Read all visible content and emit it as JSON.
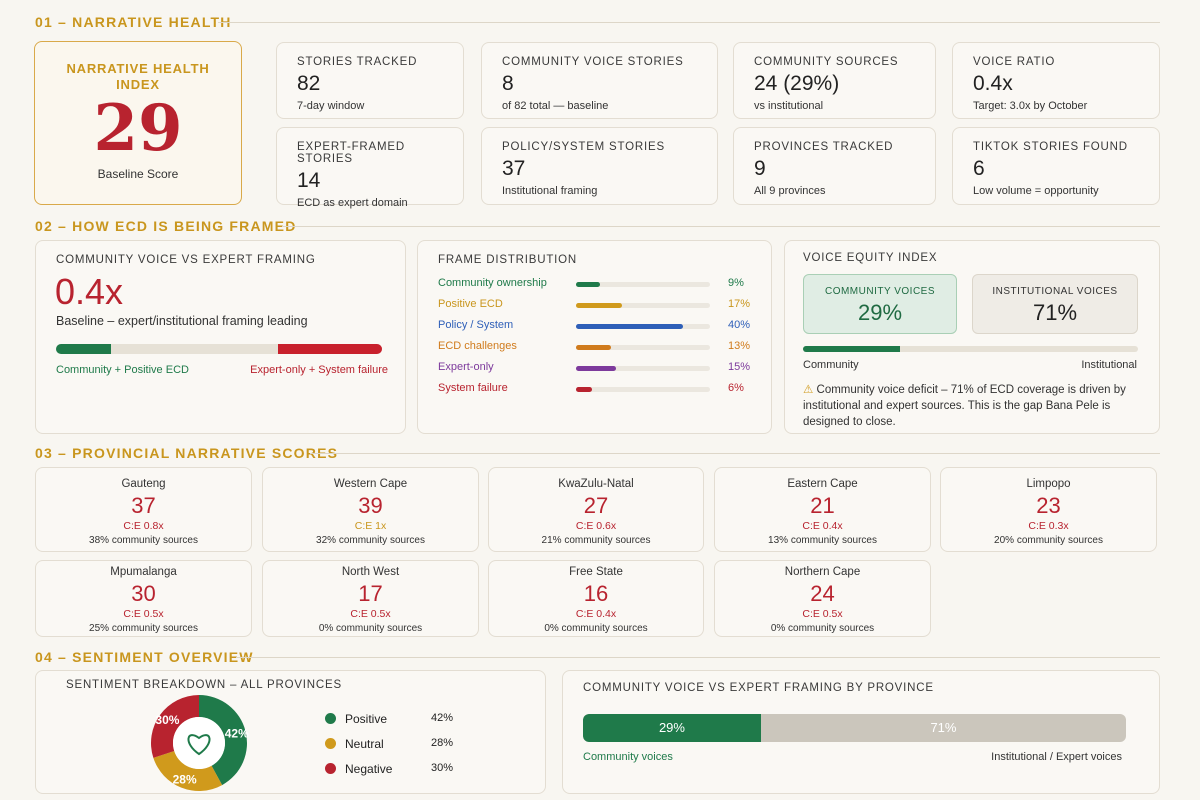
{
  "sections": {
    "s1": "01 – NARRATIVE HEALTH",
    "s2": "02 – HOW ECD IS BEING FRAMED",
    "s3": "03 – PROVINCIAL NARRATIVE SCORES",
    "s4": "04 – SENTIMENT OVERVIEW"
  },
  "health_index": {
    "title": "NARRATIVE HEALTH INDEX",
    "score": "29",
    "sub": "Baseline Score"
  },
  "stats": [
    {
      "label": "STORIES TRACKED",
      "value": "82",
      "sub": "7-day window"
    },
    {
      "label": "COMMUNITY VOICE STORIES",
      "value": "8",
      "sub": "of 82 total — baseline"
    },
    {
      "label": "COMMUNITY SOURCES",
      "value": "24 (29%)",
      "sub": "vs institutional"
    },
    {
      "label": "VOICE RATIO",
      "value": "0.4x",
      "sub": "Target: 3.0x by October"
    },
    {
      "label": "EXPERT-FRAMED STORIES",
      "value": "14",
      "sub": "ECD as expert domain"
    },
    {
      "label": "POLICY/SYSTEM STORIES",
      "value": "37",
      "sub": "Institutional framing"
    },
    {
      "label": "PROVINCES TRACKED",
      "value": "9",
      "sub": "All 9 provinces"
    },
    {
      "label": "TIKTOK STORIES FOUND",
      "value": "6",
      "sub": "Low volume = opportunity"
    }
  ],
  "framing": {
    "title": "COMMUNITY VOICE VS EXPERT FRAMING",
    "value": "0.4x",
    "sub": "Baseline – expert/institutional framing leading",
    "left_label": "Community + Positive ECD",
    "right_label": "Expert-only + System failure",
    "green_share": 0.17,
    "red_share": 0.32
  },
  "frame_distribution": {
    "title": "FRAME DISTRIBUTION",
    "items": [
      {
        "name": "Community ownership",
        "pct": "9%",
        "value": 9,
        "color": "#1f7a4a"
      },
      {
        "name": "Positive ECD",
        "pct": "17%",
        "value": 17,
        "color": "#d09a1c"
      },
      {
        "name": "Policy / System",
        "pct": "40%",
        "value": 40,
        "color": "#2e5fb8"
      },
      {
        "name": "ECD challenges",
        "pct": "13%",
        "value": 13,
        "color": "#d07b1c"
      },
      {
        "name": "Expert-only",
        "pct": "15%",
        "value": 15,
        "color": "#7d3a9c"
      },
      {
        "name": "System failure",
        "pct": "6%",
        "value": 6,
        "color": "#b8232f"
      }
    ]
  },
  "voice_equity": {
    "title": "VOICE EQUITY INDEX",
    "community_label": "COMMUNITY VOICES",
    "community_value": "29%",
    "institutional_label": "INSTITUTIONAL VOICES",
    "institutional_value": "71%",
    "community_share": 0.29,
    "bar_left": "Community",
    "bar_right": "Institutional",
    "warning": "Community voice deficit – 71% of ECD coverage is driven by institutional and expert sources. This is the gap Bana Pele is designed to close."
  },
  "provinces": [
    {
      "name": "Gauteng",
      "score": "37",
      "ce": "C:E  0.8x",
      "cs": "38% community sources"
    },
    {
      "name": "Western Cape",
      "score": "39",
      "ce": "C:E  1x",
      "cs": "32% community sources",
      "ce_gold": true
    },
    {
      "name": "KwaZulu-Natal",
      "score": "27",
      "ce": "C:E  0.6x",
      "cs": "21% community sources"
    },
    {
      "name": "Eastern Cape",
      "score": "21",
      "ce": "C:E  0.4x",
      "cs": "13% community sources"
    },
    {
      "name": "Limpopo",
      "score": "23",
      "ce": "C:E  0.3x",
      "cs": "20% community sources"
    },
    {
      "name": "Mpumalanga",
      "score": "30",
      "ce": "C:E  0.5x",
      "cs": "25% community sources"
    },
    {
      "name": "North West",
      "score": "17",
      "ce": "C:E  0.5x",
      "cs": "0% community sources"
    },
    {
      "name": "Free State",
      "score": "16",
      "ce": "C:E  0.4x",
      "cs": "0% community sources"
    },
    {
      "name": "Northern Cape",
      "score": "24",
      "ce": "C:E  0.5x",
      "cs": "0% community sources"
    }
  ],
  "sentiment": {
    "title": "SENTIMENT BREAKDOWN – ALL PROVINCES",
    "slices": [
      {
        "name": "Positive",
        "pct": "42%",
        "value": 42,
        "color": "#1f7a4a"
      },
      {
        "name": "Neutral",
        "pct": "28%",
        "value": 28,
        "color": "#d09a1c"
      },
      {
        "name": "Negative",
        "pct": "30%",
        "value": 30,
        "color": "#b8232f"
      }
    ],
    "icon": "heart-icon"
  },
  "province_voice": {
    "title": "COMMUNITY VOICE VS EXPERT FRAMING BY PROVINCE",
    "community_pct": "29%",
    "community_share": 0.29,
    "expert_pct": "71%",
    "left_label": "Community voices",
    "right_label": "Institutional / Expert voices"
  }
}
